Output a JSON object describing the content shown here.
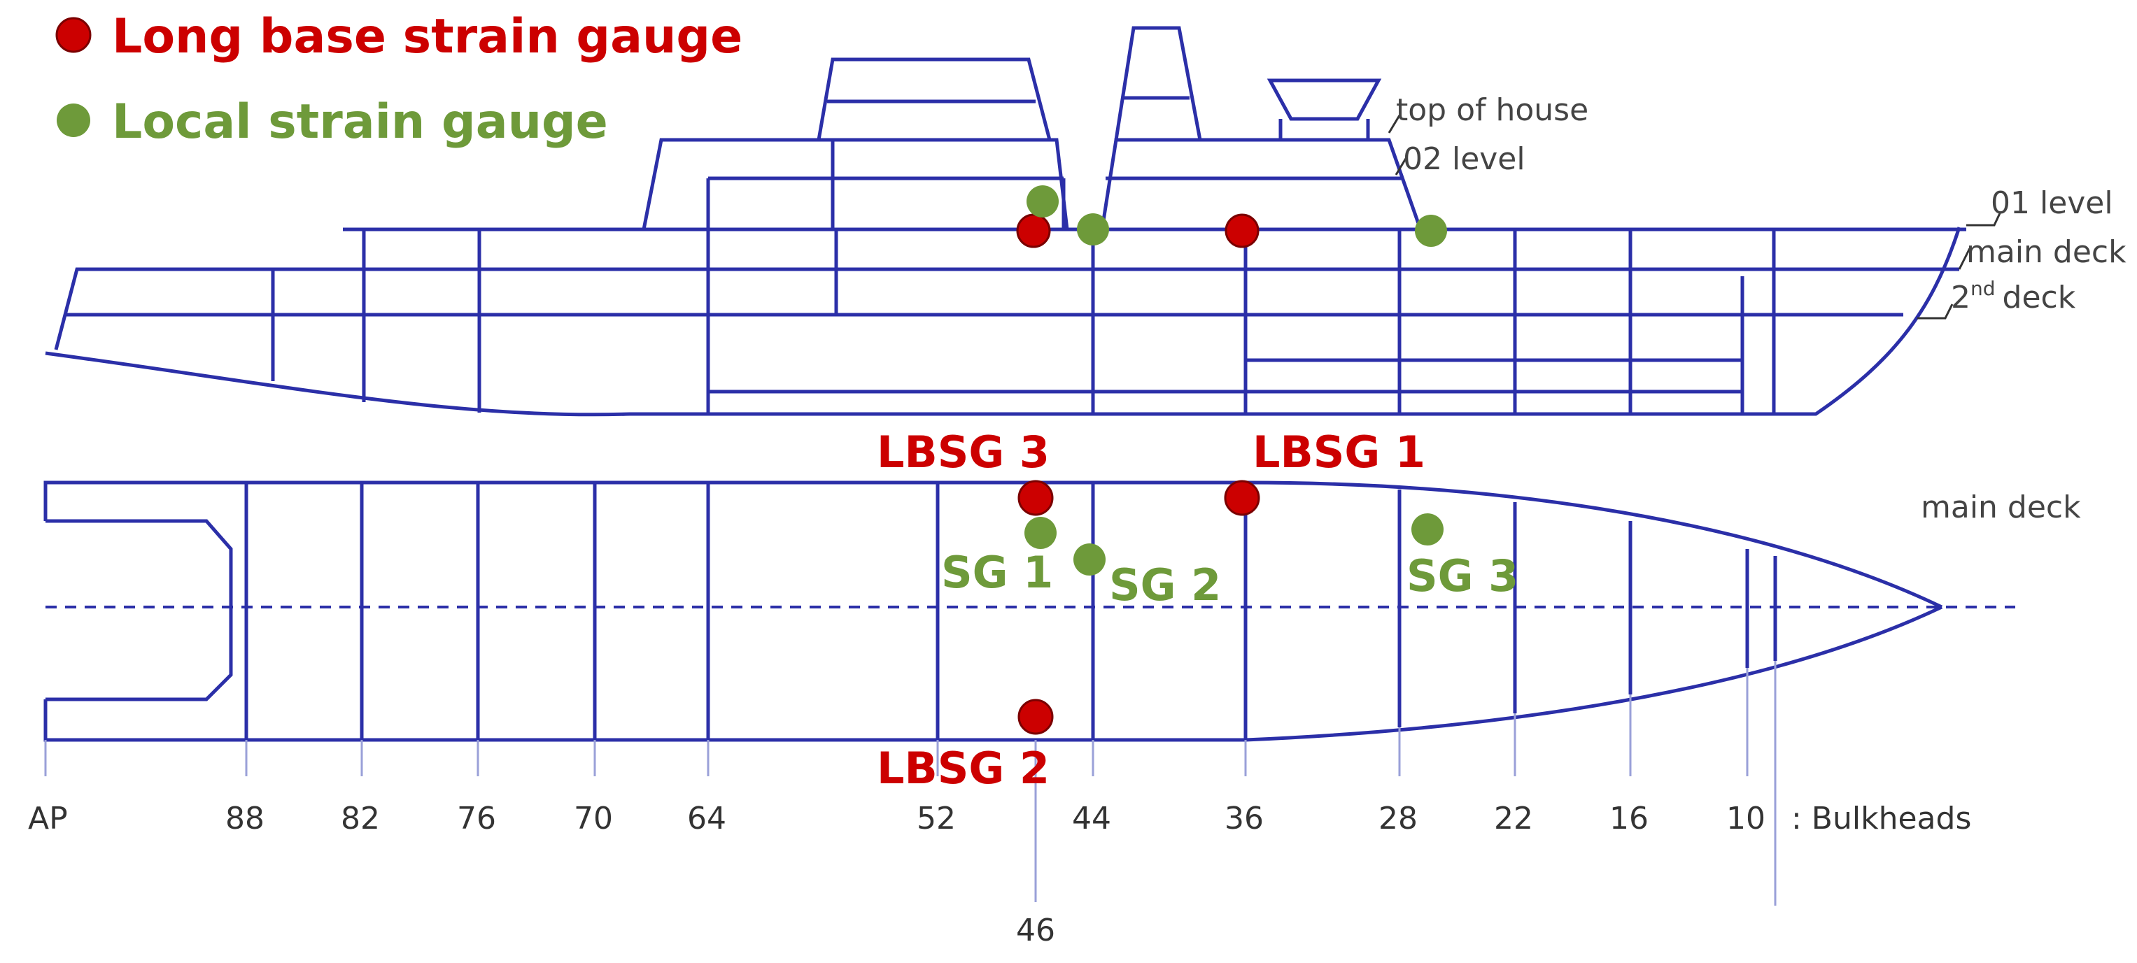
{
  "legend": {
    "long_base": "Long base strain gauge",
    "local": "Local strain gauge"
  },
  "colors": {
    "long_base": "#cc0000",
    "local": "#6e9a3a",
    "structure": "#2b2fa8",
    "frame46": "#e03030"
  },
  "deck_labels": {
    "top_of_house": "top of house",
    "level_02": "02 level",
    "level_01": "01 level",
    "main_deck": "main deck",
    "second_deck_num": "2",
    "second_deck_sup": "nd",
    "second_deck_word": "deck",
    "plan_main_deck": "main deck"
  },
  "bulkheads": {
    "labels": [
      "AP",
      "88",
      "82",
      "76",
      "70",
      "64",
      "52",
      "44",
      "36",
      "28",
      "22",
      "16",
      "10"
    ],
    "suffix": ": Bulkheads",
    "frame46": "46"
  },
  "gauges": {
    "lbsg1": "LBSG 1",
    "lbsg2": "LBSG 2",
    "lbsg3": "LBSG 3",
    "sg1": "SG 1",
    "sg2": "SG 2",
    "sg3": "SG 3"
  }
}
